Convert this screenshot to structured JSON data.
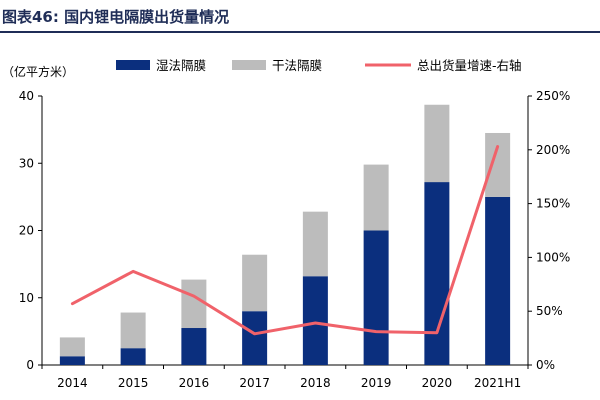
{
  "header": {
    "title": "图表46:   国内锂电隔膜出货量情况"
  },
  "colors": {
    "wet": "#0b2f7e",
    "dry": "#bcbcbc",
    "growth": "#f0626a",
    "title": "#1f2d57"
  },
  "chart_data": {
    "type": "bar",
    "stacked": true,
    "unit_label": "（亿平方米）",
    "categories": [
      "2014",
      "2015",
      "2016",
      "2017",
      "2018",
      "2019",
      "2020",
      "2021H1"
    ],
    "series": [
      {
        "name": "湿法隔膜",
        "type": "bar",
        "axis": "left",
        "values": [
          1.3,
          2.5,
          5.5,
          8.0,
          13.2,
          20.0,
          27.2,
          25.0
        ]
      },
      {
        "name": "干法隔膜",
        "type": "bar",
        "axis": "left",
        "values": [
          2.8,
          5.3,
          7.2,
          8.4,
          9.6,
          9.8,
          11.5,
          9.5
        ]
      },
      {
        "name": "总出货量增速-右轴",
        "type": "line",
        "axis": "right",
        "values": [
          0.57,
          0.87,
          0.64,
          0.29,
          0.39,
          0.31,
          0.3,
          2.03
        ]
      }
    ],
    "y_left": {
      "ylim": [
        0,
        40
      ],
      "ticks": [
        0,
        10,
        20,
        30,
        40
      ]
    },
    "y_right": {
      "ylim": [
        0,
        2.5
      ],
      "ticks": [
        0,
        0.5,
        1.0,
        1.5,
        2.0,
        2.5
      ],
      "tick_labels": [
        "0%",
        "50%",
        "100%",
        "150%",
        "200%",
        "250%"
      ]
    },
    "grid": false,
    "legend_position": "top"
  }
}
